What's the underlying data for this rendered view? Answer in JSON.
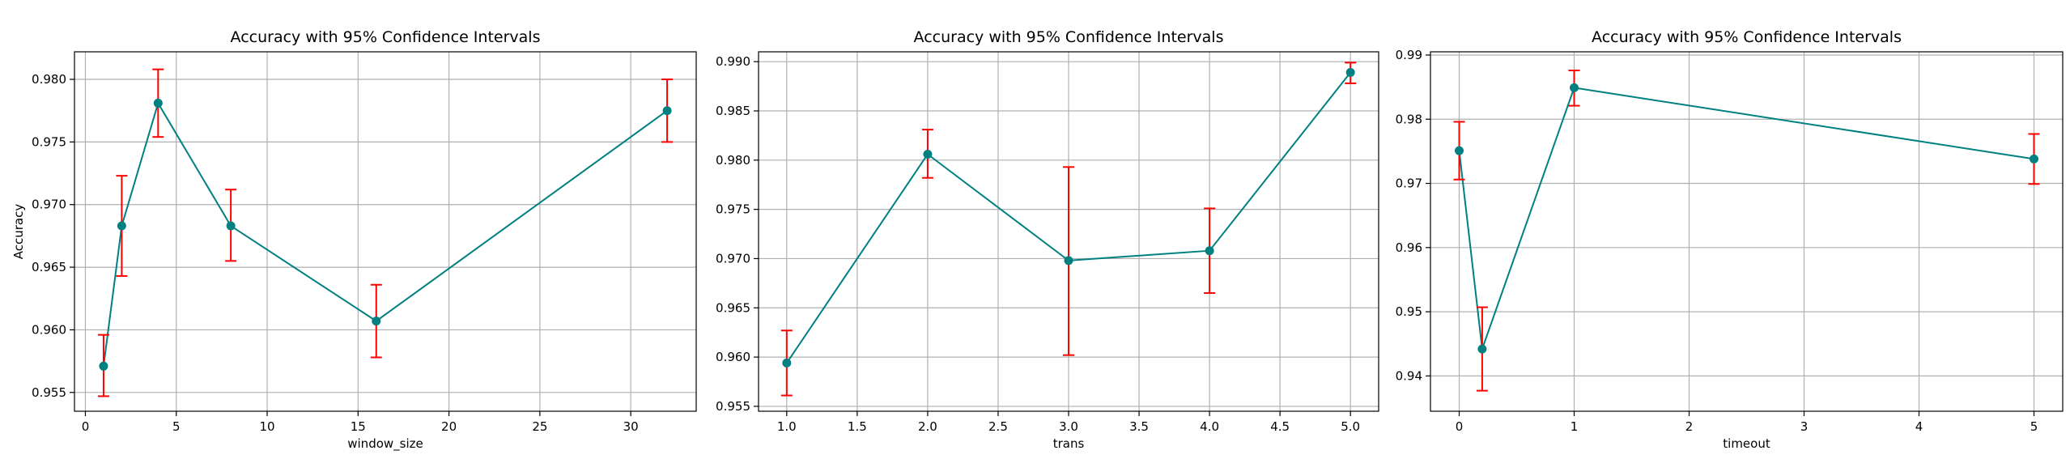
{
  "chart_data": [
    {
      "type": "line",
      "title": "Accuracy with 95% Confidence Intervals",
      "xlabel": "window_size",
      "ylabel": "Accuracy",
      "xlim": [
        -0.6,
        33.6
      ],
      "ylim": [
        0.9535,
        0.9822
      ],
      "xticks": [
        0,
        5,
        10,
        15,
        20,
        25,
        30
      ],
      "xtick_labels": [
        "0",
        "5",
        "10",
        "15",
        "20",
        "25",
        "30"
      ],
      "yticks": [
        0.955,
        0.96,
        0.965,
        0.97,
        0.975,
        0.98
      ],
      "ytick_labels": [
        "0.955",
        "0.960",
        "0.965",
        "0.970",
        "0.975",
        "0.980"
      ],
      "grid": true,
      "series": [
        {
          "x": [
            1,
            2,
            4,
            8,
            16,
            32
          ],
          "y": [
            0.9571,
            0.9683,
            0.9781,
            0.9683,
            0.9607,
            0.9775
          ],
          "ci_low": [
            0.9547,
            0.9643,
            0.9754,
            0.9655,
            0.9578,
            0.975
          ],
          "ci_high": [
            0.9596,
            0.9723,
            0.9808,
            0.9712,
            0.9636,
            0.98
          ]
        }
      ],
      "line_color": "#008080",
      "errorbar_color": "#ff0000"
    },
    {
      "type": "line",
      "title": "Accuracy with 95% Confidence Intervals",
      "xlabel": "trans",
      "ylabel": "",
      "xlim": [
        0.8,
        5.2
      ],
      "ylim": [
        0.9545,
        0.991
      ],
      "xticks": [
        1.0,
        1.5,
        2.0,
        2.5,
        3.0,
        3.5,
        4.0,
        4.5,
        5.0
      ],
      "xtick_labels": [
        "1.0",
        "1.5",
        "2.0",
        "2.5",
        "3.0",
        "3.5",
        "4.0",
        "4.5",
        "5.0"
      ],
      "yticks": [
        0.955,
        0.96,
        0.965,
        0.97,
        0.975,
        0.98,
        0.985,
        0.99
      ],
      "ytick_labels": [
        "0.955",
        "0.960",
        "0.965",
        "0.970",
        "0.975",
        "0.980",
        "0.985",
        "0.990"
      ],
      "grid": true,
      "series": [
        {
          "x": [
            1,
            2,
            3,
            4,
            5
          ],
          "y": [
            0.9594,
            0.9806,
            0.9698,
            0.9708,
            0.9889
          ],
          "ci_low": [
            0.9561,
            0.9782,
            0.9602,
            0.9665,
            0.9878
          ],
          "ci_high": [
            0.9627,
            0.9831,
            0.9793,
            0.9751,
            0.9899
          ]
        }
      ],
      "line_color": "#008080",
      "errorbar_color": "#ff0000"
    },
    {
      "type": "line",
      "title": "Accuracy with 95% Confidence Intervals",
      "xlabel": "timeout",
      "ylabel": "",
      "xlim": [
        -0.25,
        5.25
      ],
      "ylim": [
        0.9345,
        0.9905
      ],
      "xticks": [
        0,
        1,
        2,
        3,
        4,
        5
      ],
      "xtick_labels": [
        "0",
        "1",
        "2",
        "3",
        "4",
        "5"
      ],
      "yticks": [
        0.94,
        0.95,
        0.96,
        0.97,
        0.98,
        0.99
      ],
      "ytick_labels": [
        "0.94",
        "0.95",
        "0.96",
        "0.97",
        "0.98",
        "0.99"
      ],
      "grid": true,
      "series": [
        {
          "x": [
            0,
            0.2,
            1,
            5
          ],
          "y": [
            0.9751,
            0.9442,
            0.9849,
            0.9738
          ],
          "ci_low": [
            0.9706,
            0.9377,
            0.9821,
            0.9699
          ],
          "ci_high": [
            0.9796,
            0.9507,
            0.9876,
            0.9777
          ]
        }
      ],
      "line_color": "#008080",
      "errorbar_color": "#ff0000"
    }
  ]
}
